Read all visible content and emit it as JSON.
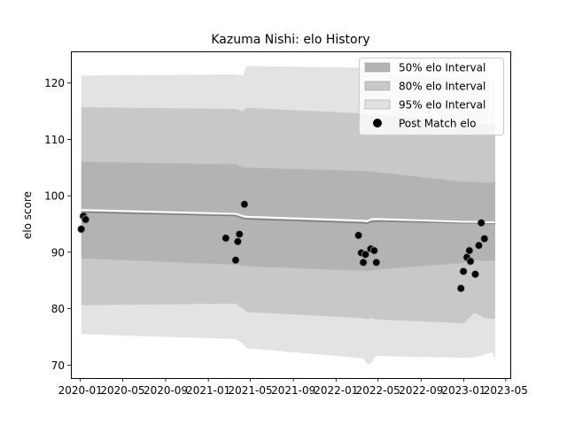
{
  "chart_data": {
    "type": "line",
    "title": "Kazuma Nishi: elo History",
    "xlabel": "",
    "ylabel": "elo score",
    "xlim": [
      "2019-12-05",
      "2023-05-14"
    ],
    "ylim": [
      67.7,
      125.6
    ],
    "x_ticks": [
      "2020-01",
      "2020-05",
      "2020-09",
      "2021-01",
      "2021-05",
      "2021-09",
      "2022-01",
      "2022-05",
      "2022-09",
      "2023-01",
      "2023-05"
    ],
    "y_ticks": [
      70,
      80,
      90,
      100,
      110,
      120
    ],
    "grid": false,
    "legend_position": "top-right",
    "legend": [
      {
        "label": "50% elo Interval",
        "color": "#b3b3b3",
        "kind": "patch"
      },
      {
        "label": "80% elo Interval",
        "color": "#c8c8c8",
        "kind": "patch"
      },
      {
        "label": "95% elo Interval",
        "color": "#e3e3e3",
        "kind": "patch"
      },
      {
        "label": "Post Match elo",
        "color": "#000000",
        "kind": "marker"
      }
    ],
    "colors": {
      "band50": "#b3b3b3",
      "band80": "#c8c8c8",
      "band95": "#e3e3e3",
      "mean_line": "#ffffff",
      "median_line": "#808080",
      "points": "#000000"
    },
    "band_x": [
      "2020-01-04",
      "2021-03-20",
      "2021-04-10",
      "2021-04-20",
      "2022-03-20",
      "2022-03-31",
      "2022-04-10",
      "2022-04-24",
      "2023-01-01",
      "2023-02-01",
      "2023-03-01",
      "2023-03-25",
      "2023-04-01"
    ],
    "mean_line": [
      97.5,
      96.8,
      96.4,
      96.3,
      95.6,
      95.5,
      95.8,
      95.9,
      95.4,
      95.4,
      95.3,
      95.3,
      95.3
    ],
    "median_line": [
      97.1,
      96.5,
      96.0,
      95.9,
      95.2,
      95.1,
      95.4,
      95.5,
      95.2,
      95.2,
      95.1,
      95.1,
      95.1
    ],
    "bands": {
      "p50": {
        "low": [
          88.9,
          87.8,
          87.6,
          87.5,
          86.7,
          86.6,
          86.8,
          86.9,
          88.1,
          88.6,
          88.4,
          88.5,
          88.4
        ],
        "high": [
          106.0,
          105.6,
          105.0,
          105.0,
          104.4,
          104.4,
          104.3,
          104.2,
          102.5,
          102.5,
          102.3,
          102.4,
          102.5
        ]
      },
      "p80": {
        "low": [
          80.6,
          80.9,
          80.0,
          79.4,
          78.3,
          78.1,
          78.3,
          78.1,
          77.4,
          79.3,
          78.3,
          78.2,
          78.3
        ],
        "high": [
          115.7,
          115.4,
          115.0,
          115.6,
          114.6,
          114.4,
          114.5,
          114.5,
          112.9,
          113.0,
          112.6,
          112.6,
          112.8
        ]
      },
      "p95": {
        "low": [
          75.5,
          74.6,
          73.8,
          73.0,
          71.2,
          70.2,
          70.3,
          71.6,
          71.3,
          71.4,
          71.9,
          72.2,
          71.0
        ],
        "high": [
          121.3,
          121.5,
          121.3,
          123.0,
          122.7,
          122.1,
          122.1,
          122.0,
          120.7,
          121.0,
          120.5,
          120.6,
          120.7
        ]
      }
    },
    "points": [
      {
        "x": "2020-01-04",
        "y": 94.1
      },
      {
        "x": "2020-01-10",
        "y": 96.4
      },
      {
        "x": "2020-01-16",
        "y": 95.8
      },
      {
        "x": "2021-02-20",
        "y": 92.5
      },
      {
        "x": "2021-03-20",
        "y": 88.6
      },
      {
        "x": "2021-03-26",
        "y": 91.9
      },
      {
        "x": "2021-03-31",
        "y": 93.2
      },
      {
        "x": "2021-04-14",
        "y": 98.5
      },
      {
        "x": "2022-03-06",
        "y": 93.0
      },
      {
        "x": "2022-03-14",
        "y": 89.9
      },
      {
        "x": "2022-03-20",
        "y": 88.2
      },
      {
        "x": "2022-03-26",
        "y": 89.6
      },
      {
        "x": "2022-04-10",
        "y": 90.6
      },
      {
        "x": "2022-04-20",
        "y": 90.3
      },
      {
        "x": "2022-04-26",
        "y": 88.2
      },
      {
        "x": "2022-12-24",
        "y": 83.6
      },
      {
        "x": "2022-12-31",
        "y": 86.6
      },
      {
        "x": "2023-01-10",
        "y": 89.1
      },
      {
        "x": "2023-01-17",
        "y": 90.3
      },
      {
        "x": "2023-01-20",
        "y": 88.4
      },
      {
        "x": "2023-02-03",
        "y": 86.1
      },
      {
        "x": "2023-02-13",
        "y": 91.2
      },
      {
        "x": "2023-02-20",
        "y": 95.2
      },
      {
        "x": "2023-03-01",
        "y": 92.4
      }
    ]
  }
}
